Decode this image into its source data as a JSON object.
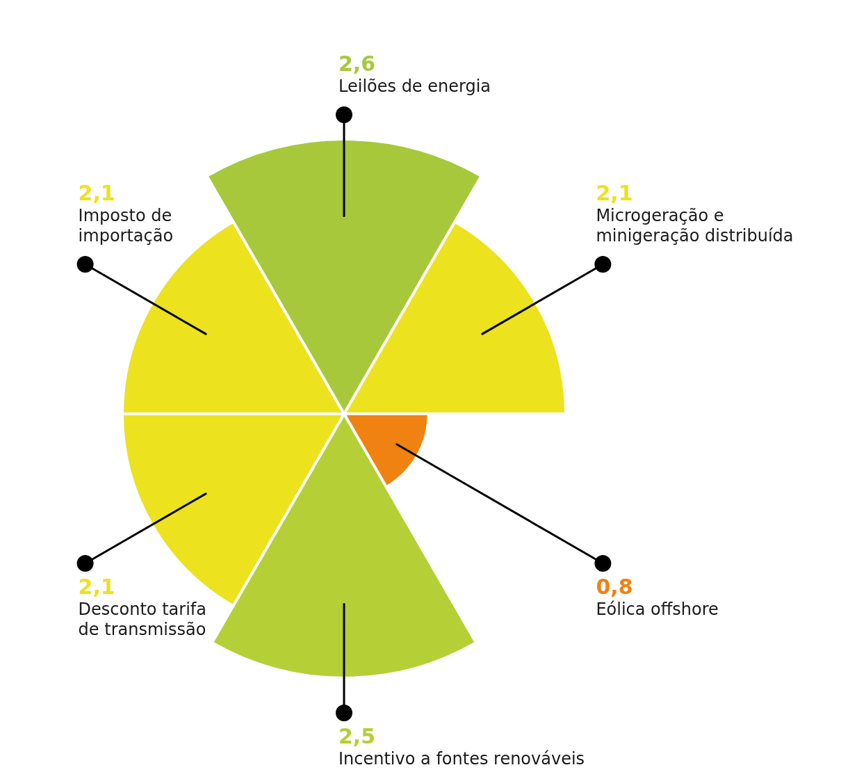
{
  "chart_data": {
    "type": "other",
    "categories": [
      "Leilões de energia",
      "Microgeração e minigeração distribuída",
      "Eólica offshore",
      "Incentivo a fontes renováveis",
      "Desconto tarifa de transmissão",
      "Imposto de importação"
    ],
    "values": [
      2.6,
      2.1,
      0.8,
      2.5,
      2.1,
      2.1
    ],
    "value_labels": [
      "2,6",
      "2,1",
      "0,8",
      "2,5",
      "2,1",
      "2,1"
    ],
    "colors": [
      "#a8c83c",
      "#ece21e",
      "#f08212",
      "#b5cf36",
      "#ece21e",
      "#ece21e"
    ]
  }
}
